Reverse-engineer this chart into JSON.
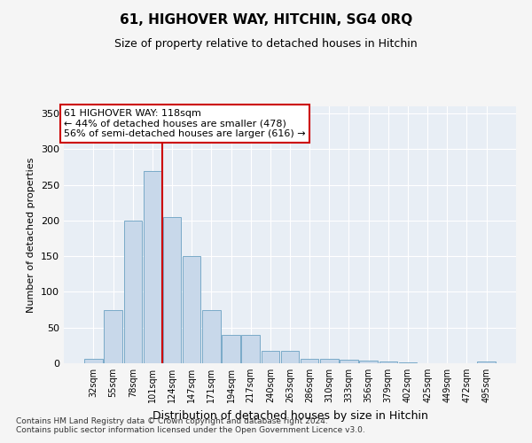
{
  "title": "61, HIGHOVER WAY, HITCHIN, SG4 0RQ",
  "subtitle": "Size of property relative to detached houses in Hitchin",
  "xlabel": "Distribution of detached houses by size in Hitchin",
  "ylabel": "Number of detached properties",
  "bar_color": "#c8d8ea",
  "bar_edge_color": "#7aaac8",
  "bg_color": "#e8eef5",
  "grid_color": "#ffffff",
  "fig_bg_color": "#f5f5f5",
  "categories": [
    "32sqm",
    "55sqm",
    "78sqm",
    "101sqm",
    "124sqm",
    "147sqm",
    "171sqm",
    "194sqm",
    "217sqm",
    "240sqm",
    "263sqm",
    "286sqm",
    "310sqm",
    "333sqm",
    "356sqm",
    "379sqm",
    "402sqm",
    "425sqm",
    "449sqm",
    "472sqm",
    "495sqm"
  ],
  "values": [
    6,
    75,
    200,
    270,
    205,
    150,
    75,
    40,
    40,
    18,
    18,
    6,
    6,
    5,
    4,
    2,
    1,
    0,
    0,
    0,
    2
  ],
  "ylim": [
    0,
    360
  ],
  "yticks": [
    0,
    50,
    100,
    150,
    200,
    250,
    300,
    350
  ],
  "line_x_index": 3.5,
  "annotation_text": "61 HIGHOVER WAY: 118sqm\n← 44% of detached houses are smaller (478)\n56% of semi-detached houses are larger (616) →",
  "annotation_box_color": "#ffffff",
  "annotation_box_edge": "#cc0000",
  "line_color": "#cc0000",
  "footnote": "Contains HM Land Registry data © Crown copyright and database right 2024.\nContains public sector information licensed under the Open Government Licence v3.0.",
  "figsize": [
    6.0,
    5.0
  ],
  "dpi": 100
}
